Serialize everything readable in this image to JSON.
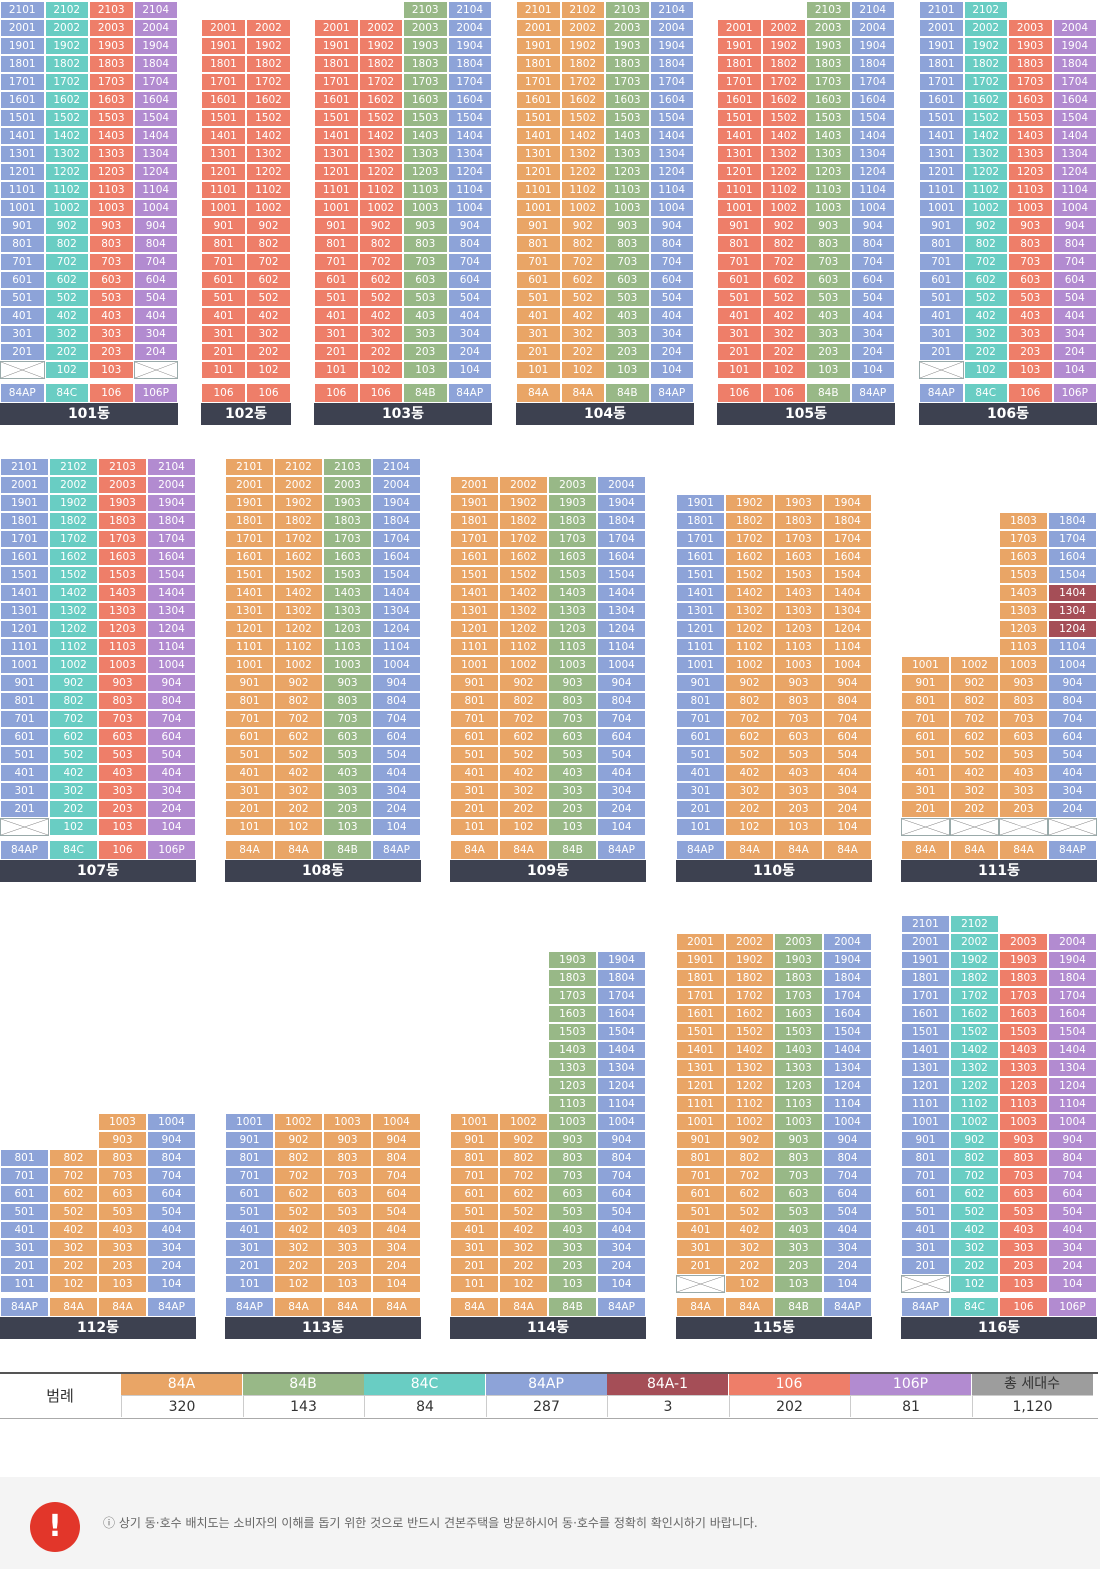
{
  "colors": {
    "84A": "#e9a566",
    "84B": "#98b887",
    "84C": "#69cdc3",
    "84AP": "#8da3d8",
    "84A-1": "#a54e57",
    "106": "#ee7e69",
    "106P": "#b28bd0",
    "total": "#9d9d9d"
  },
  "buildings": [
    {
      "name": "101동",
      "types": [
        "84AP",
        "84C",
        "106",
        "106P"
      ],
      "top_floor": 21,
      "tops": [
        21,
        21,
        21,
        21
      ],
      "bottoms": [
        2,
        1,
        1,
        2
      ],
      "empty_first": [
        1,
        4
      ]
    },
    {
      "name": "102동",
      "types": [
        "106",
        "106"
      ],
      "top_floor": 20,
      "tops": [
        20,
        20
      ],
      "bottoms": [
        1,
        1
      ],
      "empty_first": []
    },
    {
      "name": "103동",
      "types": [
        "106",
        "106",
        "84B",
        "84AP"
      ],
      "top_floor": 21,
      "tops": [
        20,
        20,
        21,
        21
      ],
      "bottoms": [
        1,
        1,
        1,
        1
      ],
      "empty_first": []
    },
    {
      "name": "104동",
      "types": [
        "84A",
        "84A",
        "84B",
        "84AP"
      ],
      "top_floor": 21,
      "tops": [
        21,
        21,
        21,
        21
      ],
      "bottoms": [
        1,
        1,
        1,
        1
      ],
      "empty_first": []
    },
    {
      "name": "105동",
      "types": [
        "106",
        "106",
        "84B",
        "84AP"
      ],
      "top_floor": 21,
      "tops": [
        20,
        20,
        21,
        21
      ],
      "bottoms": [
        1,
        1,
        1,
        1
      ],
      "empty_first": []
    },
    {
      "name": "106동",
      "types": [
        "84AP",
        "84C",
        "106",
        "106P"
      ],
      "top_floor": 21,
      "tops": [
        21,
        21,
        20,
        20
      ],
      "bottoms": [
        2,
        1,
        1,
        1
      ],
      "empty_first": [
        1
      ]
    },
    {
      "name": "107동",
      "types": [
        "84AP",
        "84C",
        "106",
        "106P"
      ],
      "top_floor": 21,
      "tops": [
        21,
        21,
        21,
        21
      ],
      "bottoms": [
        2,
        1,
        1,
        1
      ],
      "empty_first": [
        1
      ]
    },
    {
      "name": "108동",
      "types": [
        "84A",
        "84A",
        "84B",
        "84AP"
      ],
      "top_floor": 21,
      "tops": [
        21,
        21,
        21,
        21
      ],
      "bottoms": [
        1,
        1,
        1,
        1
      ],
      "empty_first": []
    },
    {
      "name": "109동",
      "types": [
        "84A",
        "84A",
        "84B",
        "84AP"
      ],
      "top_floor": 21,
      "tops": [
        20,
        20,
        20,
        20
      ],
      "bottoms": [
        1,
        1,
        1,
        1
      ],
      "empty_first": []
    },
    {
      "name": "110동",
      "types": [
        "84AP",
        "84A",
        "84A",
        "84A"
      ],
      "top_floor": 21,
      "tops": [
        19,
        19,
        19,
        19
      ],
      "bottoms": [
        1,
        1,
        1,
        1
      ],
      "empty_first": []
    },
    {
      "name": "111동",
      "types": [
        "84A",
        "84A",
        "84A",
        "84AP"
      ],
      "top_floor": 21,
      "tops": [
        10,
        10,
        18,
        18
      ],
      "bottoms": [
        2,
        2,
        2,
        2
      ],
      "empty_first": [
        1,
        2,
        3,
        4
      ],
      "special": {
        "col": 3,
        "floors": [
          12,
          13,
          14
        ],
        "type": "84A-1"
      }
    },
    {
      "name": "112동",
      "types": [
        "84AP",
        "84A",
        "84A",
        "84AP"
      ],
      "top_floor": 21,
      "tops": [
        8,
        8,
        10,
        10
      ],
      "bottoms": [
        1,
        1,
        1,
        1
      ],
      "empty_first": []
    },
    {
      "name": "113동",
      "types": [
        "84AP",
        "84A",
        "84A",
        "84A"
      ],
      "top_floor": 21,
      "tops": [
        10,
        10,
        10,
        10
      ],
      "bottoms": [
        1,
        1,
        1,
        1
      ],
      "empty_first": []
    },
    {
      "name": "114동",
      "types": [
        "84A",
        "84A",
        "84B",
        "84AP"
      ],
      "top_floor": 21,
      "tops": [
        10,
        10,
        19,
        19
      ],
      "bottoms": [
        1,
        1,
        1,
        1
      ],
      "empty_first": []
    },
    {
      "name": "115동",
      "types": [
        "84A",
        "84A",
        "84B",
        "84AP"
      ],
      "top_floor": 21,
      "tops": [
        20,
        20,
        20,
        20
      ],
      "bottoms": [
        2,
        1,
        1,
        1
      ],
      "empty_first": [
        1
      ]
    },
    {
      "name": "116동",
      "types": [
        "84AP",
        "84C",
        "106",
        "106P"
      ],
      "top_floor": 21,
      "tops": [
        21,
        21,
        20,
        20
      ],
      "bottoms": [
        2,
        1,
        1,
        1
      ],
      "empty_first": [
        1
      ]
    }
  ],
  "legend": {
    "title": "범례",
    "items": [
      {
        "label": "84A",
        "count": "320",
        "color": "#e9a566"
      },
      {
        "label": "84B",
        "count": "143",
        "color": "#98b887"
      },
      {
        "label": "84C",
        "count": "84",
        "color": "#69cdc3"
      },
      {
        "label": "84AP",
        "count": "287",
        "color": "#8da3d8"
      },
      {
        "label": "84A-1",
        "count": "3",
        "color": "#a54e57"
      },
      {
        "label": "106",
        "count": "202",
        "color": "#ee7e69"
      },
      {
        "label": "106P",
        "count": "81",
        "color": "#b28bd0"
      },
      {
        "label": "총 세대수",
        "count": "1,120",
        "color": "#9d9d9d"
      }
    ]
  },
  "notice": {
    "badge": "!",
    "text": "ⓘ 상기 동·호수 배치도는 소비자의 이해를 돕기 위한 것으로 반드시 견본주택을 방문하시어 동·호수를 정확히 확인시하기 바랍니다."
  }
}
